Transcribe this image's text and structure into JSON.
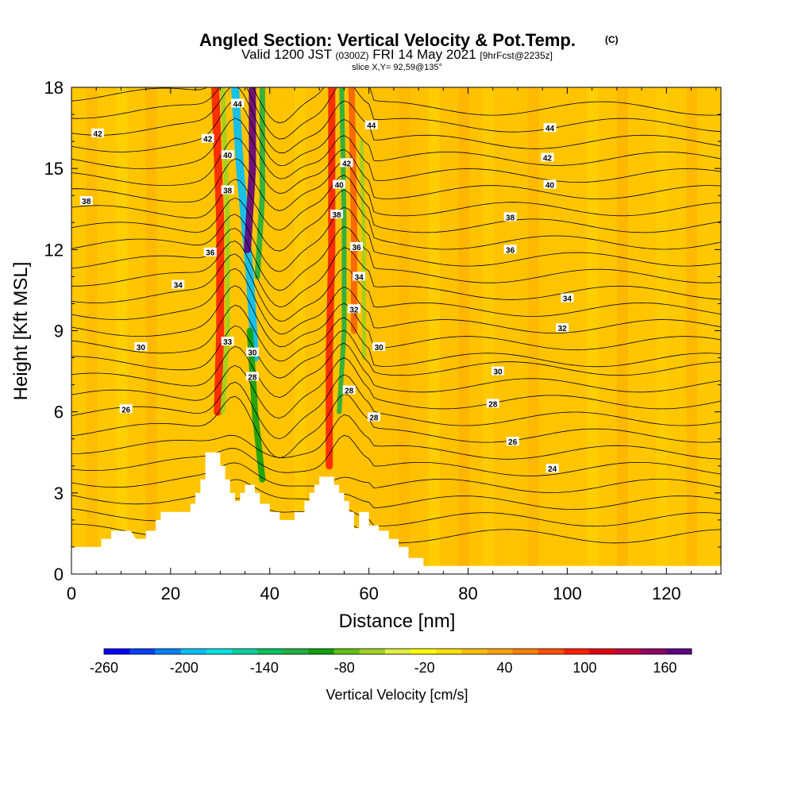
{
  "titles": {
    "main": "Angled Section: Vertical Velocity & Pot.Temp.",
    "copyright": "(C)",
    "valid": "Valid 1200 JST",
    "valid_utc": "(0300Z)",
    "valid_date": "FRI 14 May 2021",
    "forecast": "[9hrFcst@2235z]",
    "slice": "slice X,Y= 92,59@135°"
  },
  "chart_data": {
    "type": "heatmap",
    "xlabel": "Distance [nm]",
    "ylabel": "Height [Kft MSL]",
    "xlim": [
      0,
      131
    ],
    "ylim": [
      0,
      18
    ],
    "x_ticks": [
      0,
      20,
      40,
      60,
      80,
      100,
      120
    ],
    "y_ticks": [
      0,
      3,
      6,
      9,
      12,
      15,
      18
    ],
    "colorbar": {
      "label": "Vertical Velocity [cm/s]",
      "ticks": [
        -260,
        -200,
        -140,
        -80,
        -20,
        40,
        100,
        160
      ],
      "colors": [
        "#0000ff",
        "#0040ff",
        "#0080ff",
        "#00c0ff",
        "#00e0e0",
        "#00d0a0",
        "#00c060",
        "#20b040",
        "#10a010",
        "#60c010",
        "#a0d020",
        "#e0f040",
        "#ffff00",
        "#ffe000",
        "#ffc000",
        "#ffa000",
        "#ff8000",
        "#ff5000",
        "#ff2000",
        "#e00010",
        "#c00040",
        "#900060",
        "#600080"
      ],
      "min": -260,
      "max": 180
    },
    "theta_labels": [
      {
        "v": "42",
        "x": 5.3,
        "y": 16.3
      },
      {
        "v": "38",
        "x": 3.0,
        "y": 13.8
      },
      {
        "v": "42",
        "x": 27.5,
        "y": 16.1
      },
      {
        "v": "44",
        "x": 33.5,
        "y": 17.4
      },
      {
        "v": "40",
        "x": 31.5,
        "y": 15.5
      },
      {
        "v": "38",
        "x": 31.5,
        "y": 14.2
      },
      {
        "v": "36",
        "x": 28.0,
        "y": 11.9
      },
      {
        "v": "34",
        "x": 21.5,
        "y": 10.7
      },
      {
        "v": "33",
        "x": 31.5,
        "y": 8.6
      },
      {
        "v": "30",
        "x": 36.5,
        "y": 8.2
      },
      {
        "v": "28",
        "x": 36.5,
        "y": 7.3
      },
      {
        "v": "30",
        "x": 14.0,
        "y": 8.4
      },
      {
        "v": "26",
        "x": 11.0,
        "y": 6.1
      },
      {
        "v": "44",
        "x": 60.5,
        "y": 16.6
      },
      {
        "v": "42",
        "x": 55.5,
        "y": 15.2
      },
      {
        "v": "40",
        "x": 54.0,
        "y": 14.4
      },
      {
        "v": "38",
        "x": 53.5,
        "y": 13.3
      },
      {
        "v": "36",
        "x": 57.5,
        "y": 12.1
      },
      {
        "v": "34",
        "x": 58.0,
        "y": 11.0
      },
      {
        "v": "32",
        "x": 57.0,
        "y": 9.8
      },
      {
        "v": "30",
        "x": 62.0,
        "y": 8.4
      },
      {
        "v": "28",
        "x": 56.0,
        "y": 6.8
      },
      {
        "v": "28",
        "x": 61.0,
        "y": 5.8
      },
      {
        "v": "44",
        "x": 96.5,
        "y": 16.5
      },
      {
        "v": "42",
        "x": 96.0,
        "y": 15.4
      },
      {
        "v": "40",
        "x": 96.5,
        "y": 14.4
      },
      {
        "v": "38",
        "x": 88.5,
        "y": 13.2
      },
      {
        "v": "36",
        "x": 88.5,
        "y": 12.0
      },
      {
        "v": "34",
        "x": 100.0,
        "y": 10.2
      },
      {
        "v": "32",
        "x": 99.0,
        "y": 9.1
      },
      {
        "v": "30",
        "x": 86.0,
        "y": 7.5
      },
      {
        "v": "28",
        "x": 85.0,
        "y": 6.3
      },
      {
        "v": "26",
        "x": 89.0,
        "y": 4.9
      },
      {
        "v": "24",
        "x": 97.0,
        "y": 3.9
      }
    ]
  }
}
